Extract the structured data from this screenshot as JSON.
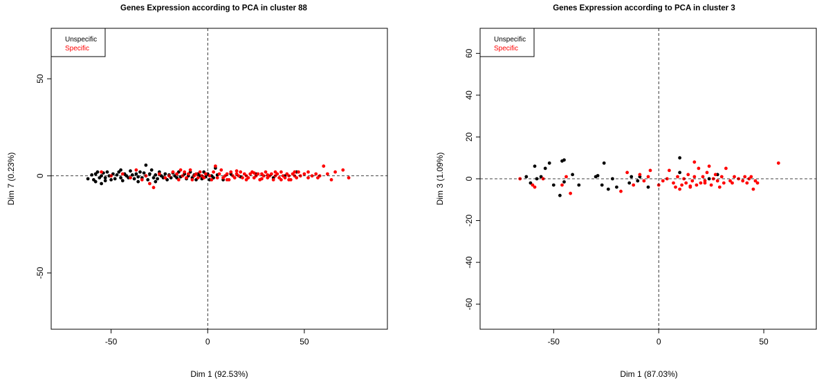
{
  "colors": {
    "unspecific": "#000000",
    "specific": "#ff0000",
    "axis": "#000000"
  },
  "chart_data": [
    {
      "type": "scatter",
      "title": "Genes Expression according to PCA in cluster 88",
      "xlabel": "Dim 1 (92.53%)",
      "ylabel": "Dim 7 (0.23%)",
      "xlim": [
        -81,
        93
      ],
      "ylim": [
        -79,
        76
      ],
      "xticks": [
        -50,
        0,
        50
      ],
      "yticks": [
        -50,
        0,
        50
      ],
      "grid": false,
      "reference_lines": {
        "x": 0,
        "y": 0,
        "style": "dashed"
      },
      "legend": {
        "position": "top-left",
        "entries": [
          "Unspecific",
          "Specific"
        ]
      },
      "series": [
        {
          "name": "Unspecific",
          "color": "#000000",
          "points": [
            [
              -62,
              -1.5
            ],
            [
              -60,
              0.5
            ],
            [
              -59,
              -2
            ],
            [
              -58,
              1
            ],
            [
              -57,
              2
            ],
            [
              -56,
              -1
            ],
            [
              -55,
              0
            ],
            [
              -55,
              -4
            ],
            [
              -54,
              1.5
            ],
            [
              -53,
              -1
            ],
            [
              -52,
              2
            ],
            [
              -51,
              0
            ],
            [
              -50,
              -2
            ],
            [
              -49,
              1
            ],
            [
              -48,
              -1.5
            ],
            [
              -47,
              0.5
            ],
            [
              -46,
              2
            ],
            [
              -45,
              -1
            ],
            [
              -44,
              -2.5
            ],
            [
              -43,
              1
            ],
            [
              -42,
              0
            ],
            [
              -41,
              -1
            ],
            [
              -40,
              2.5
            ],
            [
              -39,
              0.5
            ],
            [
              -38,
              -1.5
            ],
            [
              -37,
              1
            ],
            [
              -36,
              -0.5
            ],
            [
              -35,
              2
            ],
            [
              -34,
              -1
            ],
            [
              -33,
              1.5
            ],
            [
              -32,
              5.5
            ],
            [
              -32,
              0
            ],
            [
              -31,
              -2
            ],
            [
              -30,
              1
            ],
            [
              -29,
              3
            ],
            [
              -28,
              -1
            ],
            [
              -27,
              0.5
            ],
            [
              -26,
              -1.5
            ],
            [
              -25,
              2
            ],
            [
              -24,
              0
            ],
            [
              -23,
              -1
            ],
            [
              -22,
              1
            ],
            [
              -21,
              -2
            ],
            [
              -20,
              0.5
            ],
            [
              -19,
              -1
            ],
            [
              -18,
              1.5
            ],
            [
              -17,
              0
            ],
            [
              -16,
              -1
            ],
            [
              -15,
              2
            ],
            [
              -14,
              -0.5
            ],
            [
              -12,
              1
            ],
            [
              -11,
              -1.5
            ],
            [
              -10,
              0
            ],
            [
              -9,
              2
            ],
            [
              -8,
              -1
            ],
            [
              -7,
              0.5
            ],
            [
              -6,
              -2
            ],
            [
              -5,
              1
            ],
            [
              -4,
              0
            ],
            [
              -3,
              -1.5
            ],
            [
              -2,
              2
            ],
            [
              -1,
              -0.5
            ],
            [
              0,
              1
            ],
            [
              1,
              -2
            ],
            [
              2,
              0
            ],
            [
              3,
              -1
            ],
            [
              4,
              4
            ],
            [
              5,
              0.5
            ],
            [
              8,
              -2
            ],
            [
              12,
              1
            ],
            [
              17,
              -0.5
            ],
            [
              25,
              1
            ],
            [
              34,
              -1
            ],
            [
              40,
              0
            ],
            [
              46,
              2
            ],
            [
              -58,
              -3
            ],
            [
              -36,
              -3
            ],
            [
              -27,
              -3
            ],
            [
              -45,
              3
            ],
            [
              -53,
              -2.5
            ]
          ]
        },
        {
          "name": "Specific",
          "color": "#ff0000",
          "points": [
            [
              -55,
              2
            ],
            [
              -50,
              0
            ],
            [
              -44,
              1
            ],
            [
              -40,
              -1
            ],
            [
              -37,
              3
            ],
            [
              -34,
              -2
            ],
            [
              -32,
              0
            ],
            [
              -30,
              -4
            ],
            [
              -28,
              -6
            ],
            [
              -25,
              1
            ],
            [
              -22,
              -1
            ],
            [
              -20,
              0
            ],
            [
              -18,
              2
            ],
            [
              -16,
              1
            ],
            [
              -15,
              -2
            ],
            [
              -14,
              3
            ],
            [
              -13,
              0
            ],
            [
              -12,
              2
            ],
            [
              -11,
              -1
            ],
            [
              -10,
              1
            ],
            [
              -9,
              3
            ],
            [
              -8,
              -2
            ],
            [
              -7,
              0
            ],
            [
              -6,
              1
            ],
            [
              -5,
              -1
            ],
            [
              -4,
              2
            ],
            [
              -3,
              0
            ],
            [
              -2,
              -1
            ],
            [
              -1,
              1
            ],
            [
              1,
              0
            ],
            [
              2,
              -2
            ],
            [
              3,
              2
            ],
            [
              4,
              5
            ],
            [
              5,
              -1
            ],
            [
              6,
              1
            ],
            [
              7,
              3
            ],
            [
              8,
              -1
            ],
            [
              9,
              0
            ],
            [
              10,
              1
            ],
            [
              11,
              -2
            ],
            [
              12,
              2
            ],
            [
              13,
              0
            ],
            [
              14,
              -1
            ],
            [
              15,
              1
            ],
            [
              16,
              0
            ],
            [
              17,
              2
            ],
            [
              18,
              -1
            ],
            [
              19,
              1
            ],
            [
              20,
              0
            ],
            [
              21,
              -1
            ],
            [
              22,
              1
            ],
            [
              23,
              2
            ],
            [
              24,
              -1
            ],
            [
              25,
              0
            ],
            [
              26,
              1
            ],
            [
              27,
              -2
            ],
            [
              28,
              1
            ],
            [
              29,
              0
            ],
            [
              30,
              2
            ],
            [
              31,
              -1
            ],
            [
              32,
              0
            ],
            [
              33,
              1
            ],
            [
              34,
              -2
            ],
            [
              35,
              0
            ],
            [
              36,
              1
            ],
            [
              37,
              -1
            ],
            [
              38,
              2
            ],
            [
              39,
              0
            ],
            [
              40,
              -1
            ],
            [
              41,
              1
            ],
            [
              42,
              0
            ],
            [
              43,
              -2
            ],
            [
              44,
              1
            ],
            [
              45,
              0
            ],
            [
              46,
              -1
            ],
            [
              47,
              2
            ],
            [
              48,
              0
            ],
            [
              50,
              1
            ],
            [
              52,
              -1
            ],
            [
              54,
              0
            ],
            [
              56,
              1
            ],
            [
              58,
              0
            ],
            [
              60,
              5
            ],
            [
              62,
              1
            ],
            [
              64,
              -2
            ],
            [
              66,
              2
            ],
            [
              70,
              3
            ],
            [
              73,
              -1
            ],
            [
              20,
              -2
            ],
            [
              28,
              -1.5
            ],
            [
              35,
              2
            ],
            [
              42,
              -2
            ],
            [
              15,
              2.5
            ],
            [
              24,
              1.5
            ],
            [
              31,
              0.5
            ],
            [
              38,
              -2
            ],
            [
              45,
              2
            ],
            [
              52,
              2
            ],
            [
              57,
              -1
            ],
            [
              10,
              -2
            ]
          ]
        }
      ]
    },
    {
      "type": "scatter",
      "title": "Genes Expression according to PCA in cluster 3",
      "xlabel": "Dim 1 (87.03%)",
      "ylabel": "Dim 3 (1.09%)",
      "xlim": [
        -85,
        75
      ],
      "ylim": [
        -72,
        72
      ],
      "xticks": [
        -50,
        0,
        50
      ],
      "yticks": [
        -60,
        -40,
        -20,
        0,
        20,
        40,
        60
      ],
      "grid": false,
      "reference_lines": {
        "x": 0,
        "y": 0,
        "style": "dashed"
      },
      "legend": {
        "position": "top-left",
        "entries": [
          "Unspecific",
          "Specific"
        ]
      },
      "series": [
        {
          "name": "Unspecific",
          "color": "#000000",
          "points": [
            [
              -63,
              1
            ],
            [
              -61,
              -2
            ],
            [
              -59,
              6
            ],
            [
              -58,
              0
            ],
            [
              -56,
              1
            ],
            [
              -54,
              5
            ],
            [
              -52,
              7.5
            ],
            [
              -50,
              -3
            ],
            [
              -47,
              -8
            ],
            [
              -46,
              8.5
            ],
            [
              -45,
              9
            ],
            [
              -45,
              -1.5
            ],
            [
              -41,
              2
            ],
            [
              -38,
              -3
            ],
            [
              -30,
              1
            ],
            [
              -29,
              1.5
            ],
            [
              -27,
              -3
            ],
            [
              -26,
              7.5
            ],
            [
              -24,
              -5
            ],
            [
              -22,
              0
            ],
            [
              -20,
              -4
            ],
            [
              -14,
              -2
            ],
            [
              -13,
              1
            ],
            [
              -10,
              -1
            ],
            [
              -9,
              1
            ],
            [
              -5,
              -4
            ],
            [
              10,
              3
            ],
            [
              10,
              10
            ],
            [
              24,
              0
            ],
            [
              28,
              2
            ]
          ]
        },
        {
          "name": "Specific",
          "color": "#ff0000",
          "points": [
            [
              -66,
              0
            ],
            [
              -60,
              -3
            ],
            [
              -59,
              -4
            ],
            [
              -55,
              0
            ],
            [
              -46,
              -3
            ],
            [
              -44,
              1
            ],
            [
              -42,
              -7
            ],
            [
              -18,
              -6
            ],
            [
              -15,
              3
            ],
            [
              -12,
              -3
            ],
            [
              -9,
              2
            ],
            [
              -7,
              -1
            ],
            [
              -5,
              1
            ],
            [
              -4,
              4
            ],
            [
              0,
              -3
            ],
            [
              2,
              -1
            ],
            [
              4,
              0
            ],
            [
              5,
              4
            ],
            [
              7,
              -2
            ],
            [
              8,
              -4
            ],
            [
              9,
              1
            ],
            [
              10,
              -5
            ],
            [
              11,
              -3
            ],
            [
              12,
              0
            ],
            [
              13,
              -2
            ],
            [
              14,
              2
            ],
            [
              15,
              -4
            ],
            [
              16,
              -1
            ],
            [
              17,
              1
            ],
            [
              17,
              8
            ],
            [
              18,
              -3
            ],
            [
              19,
              5
            ],
            [
              20,
              -2
            ],
            [
              21,
              1
            ],
            [
              22,
              -1
            ],
            [
              23,
              3
            ],
            [
              24,
              6
            ],
            [
              25,
              -3
            ],
            [
              26,
              0
            ],
            [
              27,
              2
            ],
            [
              28,
              -1
            ],
            [
              29,
              -4
            ],
            [
              30,
              1
            ],
            [
              31,
              -2
            ],
            [
              32,
              5
            ],
            [
              34,
              -1
            ],
            [
              35,
              -2
            ],
            [
              36,
              1
            ],
            [
              38,
              0
            ],
            [
              40,
              -1
            ],
            [
              41,
              1
            ],
            [
              42,
              -2
            ],
            [
              43,
              0
            ],
            [
              44,
              1
            ],
            [
              45,
              -5
            ],
            [
              46,
              -1
            ],
            [
              47,
              -2
            ],
            [
              57,
              7.5
            ],
            [
              15,
              -3.5
            ],
            [
              22,
              -2
            ]
          ]
        }
      ]
    }
  ]
}
